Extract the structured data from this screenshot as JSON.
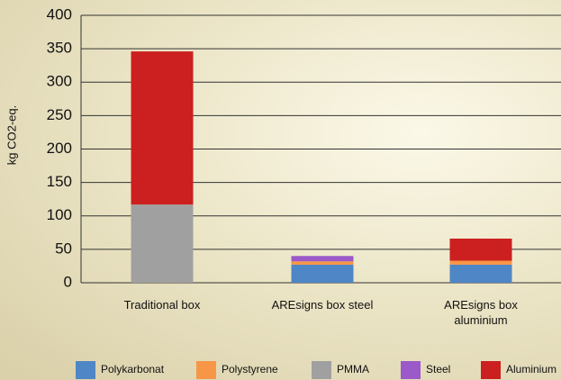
{
  "chart_data": {
    "type": "stacked_bar",
    "y_label": "kg CO2-eq.",
    "categories": [
      "Traditional box",
      "AREsigns box steel",
      "AREsigns box aluminium"
    ],
    "series": [
      {
        "name": "Polykarbonat",
        "color": "#4f86c6",
        "values": [
          0,
          27,
          27
        ]
      },
      {
        "name": "Polystyrene",
        "color": "#f79646",
        "values": [
          0,
          5,
          6
        ]
      },
      {
        "name": "PMMA",
        "color": "#a0a0a0",
        "values": [
          117,
          0,
          0
        ]
      },
      {
        "name": "Steel",
        "color": "#9b59c9",
        "values": [
          0,
          8,
          0
        ]
      },
      {
        "name": "Aluminium",
        "color": "#cc1f1f",
        "values": [
          229,
          0,
          33
        ]
      }
    ],
    "ylim": [
      0,
      400
    ],
    "yticks": [
      0,
      50,
      100,
      150,
      200,
      250,
      300,
      350,
      400
    ],
    "grid": true,
    "legend": "bottom"
  }
}
